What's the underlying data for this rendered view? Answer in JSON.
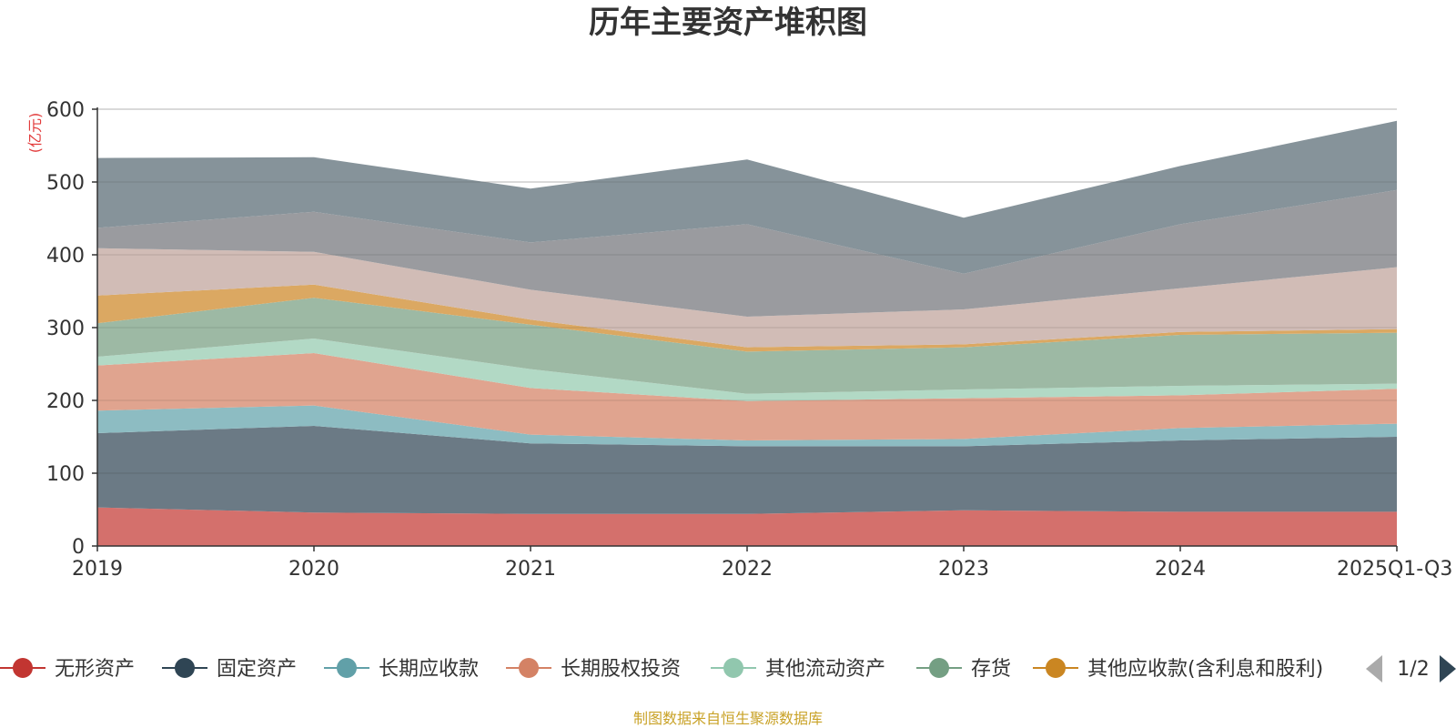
{
  "chart_data": {
    "type": "area",
    "stacked": true,
    "title": "历年主要资产堆积图",
    "unit_label": "(亿元)",
    "categories": [
      "2019",
      "2020",
      "2021",
      "2022",
      "2023",
      "2024",
      "2025Q1-Q3"
    ],
    "ylim": [
      0,
      600
    ],
    "yticks": [
      0,
      100,
      200,
      300,
      400,
      500,
      600
    ],
    "grid": true,
    "series": [
      {
        "name": "无形资产",
        "color": "#d4706c",
        "legend_color": "#c23531",
        "in_legend": true,
        "values": [
          53,
          46,
          44,
          44,
          49,
          47,
          47
        ]
      },
      {
        "name": "固定资产",
        "color": "#6b7a85",
        "legend_color": "#2f4554",
        "in_legend": true,
        "values": [
          102,
          119,
          97,
          93,
          88,
          98,
          103
        ]
      },
      {
        "name": "长期应收款",
        "color": "#8dbcc2",
        "legend_color": "#61a0a8",
        "in_legend": true,
        "values": [
          31,
          28,
          12,
          8,
          10,
          17,
          18
        ]
      },
      {
        "name": "长期股权投资",
        "color": "#e0a48f",
        "legend_color": "#d48265",
        "in_legend": true,
        "values": [
          62,
          72,
          64,
          54,
          56,
          45,
          48
        ]
      },
      {
        "name": "其他流动资产",
        "color": "#b2d9c5",
        "legend_color": "#91c7ae",
        "in_legend": true,
        "values": [
          12,
          20,
          26,
          10,
          12,
          13,
          7
        ]
      },
      {
        "name": "存货",
        "color": "#9db9a4",
        "legend_color": "#749f83",
        "in_legend": true,
        "values": [
          46,
          56,
          61,
          58,
          58,
          70,
          70
        ]
      },
      {
        "name": "其他应收款(含利息和股利)",
        "color": "#dba862",
        "legend_color": "#ca8622",
        "in_legend": true,
        "values": [
          38,
          18,
          7,
          6,
          4,
          4,
          5
        ]
      },
      {
        "name": "series-8",
        "color": "#d1bcb6",
        "legend_color": "#bda29a",
        "in_legend": false,
        "values": [
          65,
          45,
          41,
          42,
          48,
          60,
          85
        ]
      },
      {
        "name": "series-9",
        "color": "#9a9b9f",
        "legend_color": "#6e7074",
        "in_legend": false,
        "values": [
          28,
          55,
          65,
          127,
          49,
          88,
          106
        ]
      },
      {
        "name": "series-10",
        "color": "#86939a",
        "legend_color": "#546570",
        "in_legend": false,
        "values": [
          96,
          75,
          74,
          89,
          77,
          80,
          95
        ]
      }
    ]
  },
  "legend": {
    "page_indicator": "1/2"
  },
  "footer": {
    "source": "制图数据来自恒生聚源数据库"
  }
}
